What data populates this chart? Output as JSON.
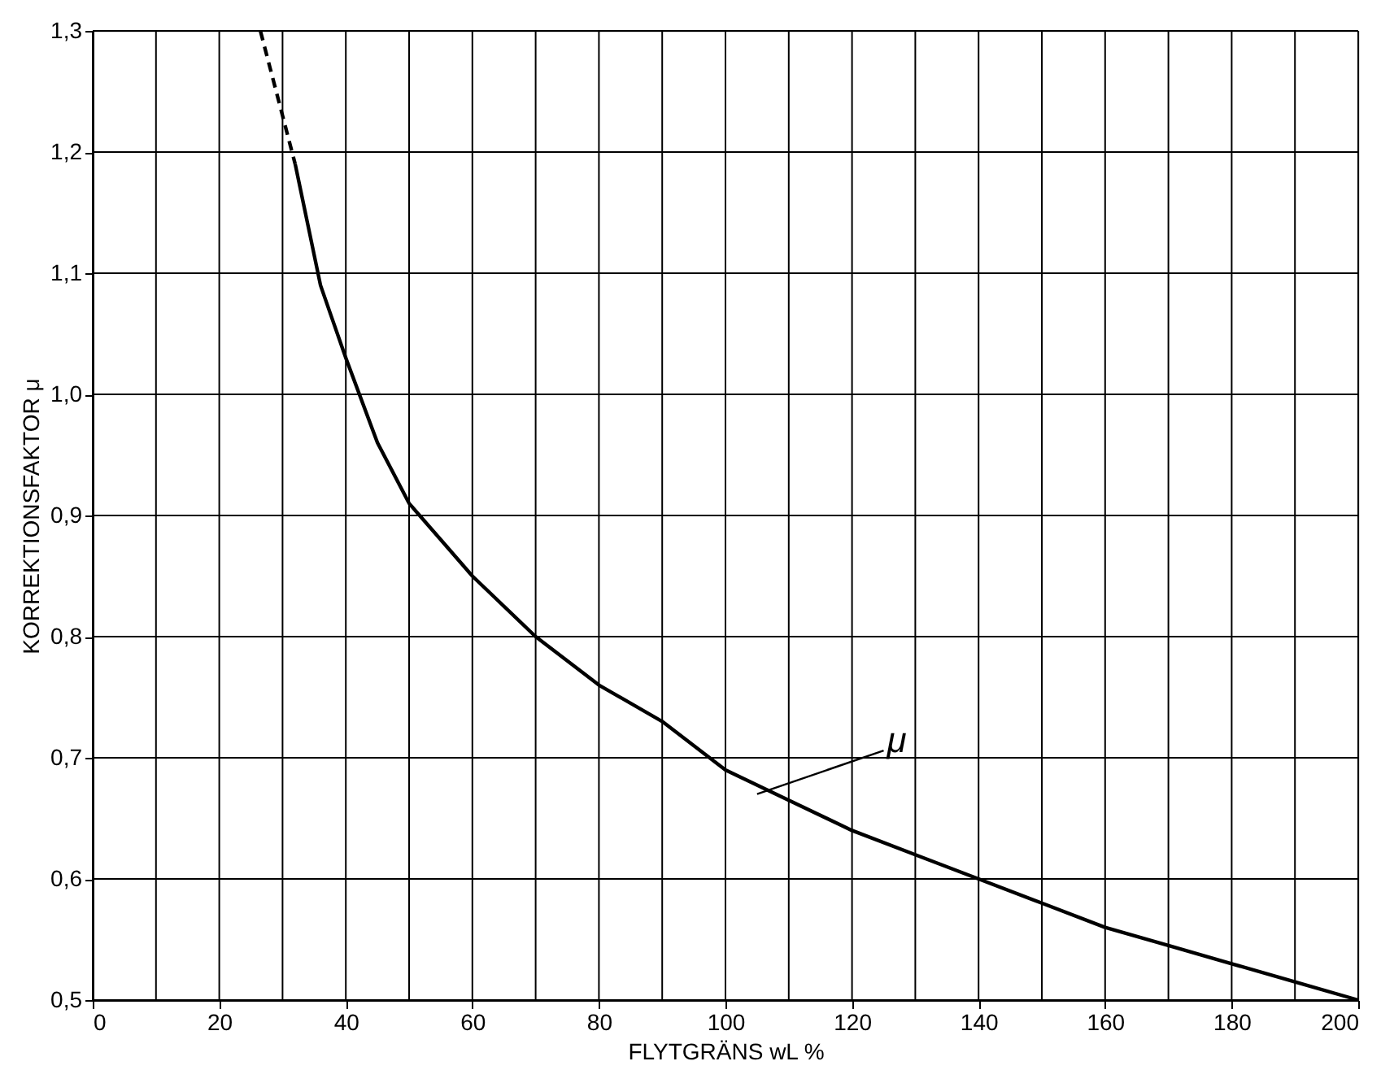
{
  "chart_data": {
    "type": "line",
    "xlabel": "FLYTGRÄNS wL %",
    "ylabel": "KORREKTIONSFAKTOR μ",
    "xlim": [
      0,
      200
    ],
    "ylim": [
      0.5,
      1.3
    ],
    "xticks": [
      0,
      {
        "value": 10,
        "label": null
      },
      20,
      {
        "value": 30,
        "label": null
      },
      40,
      {
        "value": 50,
        "label": null
      },
      60,
      {
        "value": 70,
        "label": null
      },
      80,
      {
        "value": 90,
        "label": null
      },
      100,
      {
        "value": 110,
        "label": null
      },
      120,
      {
        "value": 130,
        "label": null
      },
      140,
      {
        "value": 150,
        "label": null
      },
      160,
      {
        "value": 170,
        "label": null
      },
      180,
      {
        "value": 190,
        "label": null
      },
      200
    ],
    "yticks": [
      {
        "value": 0.5,
        "label": "0,5"
      },
      {
        "value": 0.6,
        "label": "0,6"
      },
      {
        "value": 0.7,
        "label": "0,7"
      },
      {
        "value": 0.8,
        "label": "0,8"
      },
      {
        "value": 0.9,
        "label": "0,9"
      },
      {
        "value": 1.0,
        "label": "1,0"
      },
      {
        "value": 1.1,
        "label": "1,1"
      },
      {
        "value": 1.2,
        "label": "1,2"
      },
      {
        "value": 1.3,
        "label": "1,3"
      }
    ],
    "grid": true,
    "marker": "none",
    "series": [
      {
        "color": "#000000",
        "line_style": "dashed",
        "x": [
          26.5,
          28,
          30,
          32
        ],
        "values": [
          1.3,
          1.27,
          1.23,
          1.19
        ]
      },
      {
        "color": "#000000",
        "line_style": "solid",
        "x": [
          32,
          34,
          36,
          38,
          40,
          45,
          50,
          55,
          60,
          70,
          80,
          90,
          100,
          110,
          120,
          130,
          140,
          150,
          160,
          170,
          180,
          190,
          200
        ],
        "values": [
          1.19,
          1.14,
          1.09,
          1.06,
          1.03,
          0.96,
          0.91,
          0.88,
          0.85,
          0.8,
          0.76,
          0.73,
          0.69,
          0.665,
          0.64,
          0.62,
          0.6,
          0.58,
          0.56,
          0.545,
          0.53,
          0.515,
          0.5
        ]
      }
    ],
    "annotations": [
      {
        "text": "μ",
        "x": 105,
        "y": 0.67
      }
    ]
  }
}
